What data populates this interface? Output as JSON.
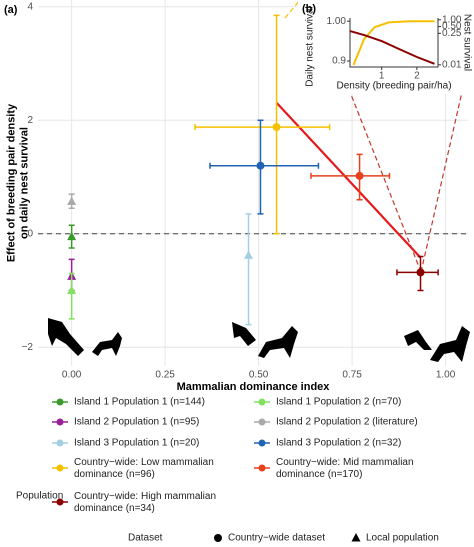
{
  "chart_data": [
    {
      "type": "scatter",
      "panel_label": "(a)",
      "x_label": "Mammalian dominance index",
      "y_label": "Effect of breeding pair density\non daily nest survival",
      "xlim": [
        -0.09,
        1.06
      ],
      "ylim": [
        -2.33,
        4.12
      ],
      "xticks": [
        {
          "value": 0,
          "label": "0.00"
        },
        {
          "value": 0.25,
          "label": "0.25"
        },
        {
          "value": 0.5,
          "label": "0.50"
        },
        {
          "value": 0.75,
          "label": "0.75"
        },
        {
          "value": 1,
          "label": "1.00"
        }
      ],
      "yticks": [
        {
          "value": -2,
          "label": "−2"
        },
        0,
        2,
        4
      ],
      "grid": true,
      "reference_line": 0,
      "legend_title": "Population",
      "series": [
        {
          "name": "Island 1 Population 1 (n=144)",
          "color": "#3a9a2a",
          "marker": "triangle",
          "x": [
            0
          ],
          "values": [
            -0.05
          ],
          "y_lower": [
            -0.25
          ],
          "y_upper": [
            0.15
          ],
          "x_lower": [
            null
          ],
          "x_upper": [
            null
          ]
        },
        {
          "name": "Island 2 Population 1 (n=95)",
          "color": "#9a1f9a",
          "marker": "triangle",
          "x": [
            0
          ],
          "values": [
            -0.75
          ],
          "y_lower": [
            -1.0
          ],
          "y_upper": [
            -0.45
          ],
          "x_lower": [
            null
          ],
          "x_upper": [
            null
          ]
        },
        {
          "name": "Island 3 Population 1 (n=20)",
          "color": "#a6cee3",
          "marker": "triangle",
          "x": [
            0.473
          ],
          "values": [
            -0.38
          ],
          "y_lower": [
            -1.6
          ],
          "y_upper": [
            0.35
          ],
          "x_lower": [
            null
          ],
          "x_upper": [
            null
          ]
        },
        {
          "name": "Country−wide: Low mammalian\ndominance (n=96)",
          "color": "#f5c000",
          "marker": "circle",
          "x": [
            0.548
          ],
          "values": [
            1.88
          ],
          "y_lower": [
            0
          ],
          "y_upper": [
            3.85
          ],
          "x_lower": [
            0.33
          ],
          "x_upper": [
            0.69
          ]
        },
        {
          "name": "Country−wide: High mammalian\ndominance (n=34)",
          "color": "#8b0000",
          "marker": "circle",
          "x": [
            0.933
          ],
          "values": [
            -0.68
          ],
          "y_lower": [
            -1.0
          ],
          "y_upper": [
            -0.4
          ],
          "x_lower": [
            0.87
          ],
          "x_upper": [
            0.98
          ]
        },
        {
          "name": "Island 1 Population 2 (n=70)",
          "color": "#80e060",
          "marker": "triangle",
          "x": [
            0
          ],
          "values": [
            -1.0
          ],
          "y_lower": [
            -1.5
          ],
          "y_upper": [
            -0.7
          ],
          "x_lower": [
            null
          ],
          "x_upper": [
            null
          ]
        },
        {
          "name": "Island 2 Population 2 (literature)",
          "color": "#aaaaaa",
          "marker": "triangle",
          "x": [
            0
          ],
          "values": [
            0.57
          ],
          "y_lower": [
            0.45
          ],
          "y_upper": [
            0.7
          ],
          "x_lower": [
            null
          ],
          "x_upper": [
            null
          ]
        },
        {
          "name": "Island 3 Population 2 (n=32)",
          "color": "#1f64b4",
          "marker": "circle",
          "x": [
            0.505
          ],
          "values": [
            1.2
          ],
          "y_lower": [
            0.35
          ],
          "y_upper": [
            2.0
          ],
          "x_lower": [
            0.37
          ],
          "x_upper": [
            0.66
          ]
        },
        {
          "name": "Country−wide: Mid mammalian\ndominance (n=170)",
          "color": "#e8401c",
          "marker": "circle",
          "x": [
            0.77
          ],
          "values": [
            1.02
          ],
          "y_lower": [
            0.6
          ],
          "y_upper": [
            1.4
          ],
          "x_lower": [
            0.64
          ],
          "x_upper": [
            0.85
          ]
        }
      ],
      "fit": {
        "color": "#e41a1c",
        "x": [
          0.548,
          0.933
        ],
        "values": [
          2.31,
          -0.42
        ]
      },
      "dataset_legend": {
        "title": "Dataset",
        "entries": [
          {
            "label": "Country−wide dataset",
            "marker": "circle"
          },
          {
            "label": "Local population",
            "marker": "triangle"
          }
        ]
      }
    },
    {
      "type": "line",
      "panel_label": "(b)",
      "x_label": "Density (breeding pair/ha)",
      "y_label": "Daily nest survival",
      "y2_label": "Nest survival",
      "xlim": [
        0.1,
        2.6
      ],
      "ylim": [
        0.885,
        1.008
      ],
      "xticks": [
        1,
        2
      ],
      "yticks": [
        {
          "value": 1,
          "label": "1.00"
        },
        0.9
      ],
      "y2lim": [
        0.008,
        1.2
      ],
      "y2_log": true,
      "y2ticks": [
        {
          "value": 1,
          "label": "1.00"
        },
        {
          "value": 0.5,
          "label": "0.50"
        },
        0.25,
        0.01
      ],
      "series": [
        {
          "color": "#f5c000",
          "x": [
            0.2,
            0.5,
            0.8,
            1.2,
            1.8,
            2.5
          ],
          "values": [
            0.89,
            0.955,
            0.985,
            0.997,
            1.0,
            1.0
          ]
        },
        {
          "color": "#8b0000",
          "x": [
            0.1,
            0.5,
            1.0,
            1.5,
            2.0,
            2.5
          ],
          "values": [
            0.975,
            0.965,
            0.95,
            0.93,
            0.91,
            0.893
          ]
        }
      ]
    }
  ]
}
